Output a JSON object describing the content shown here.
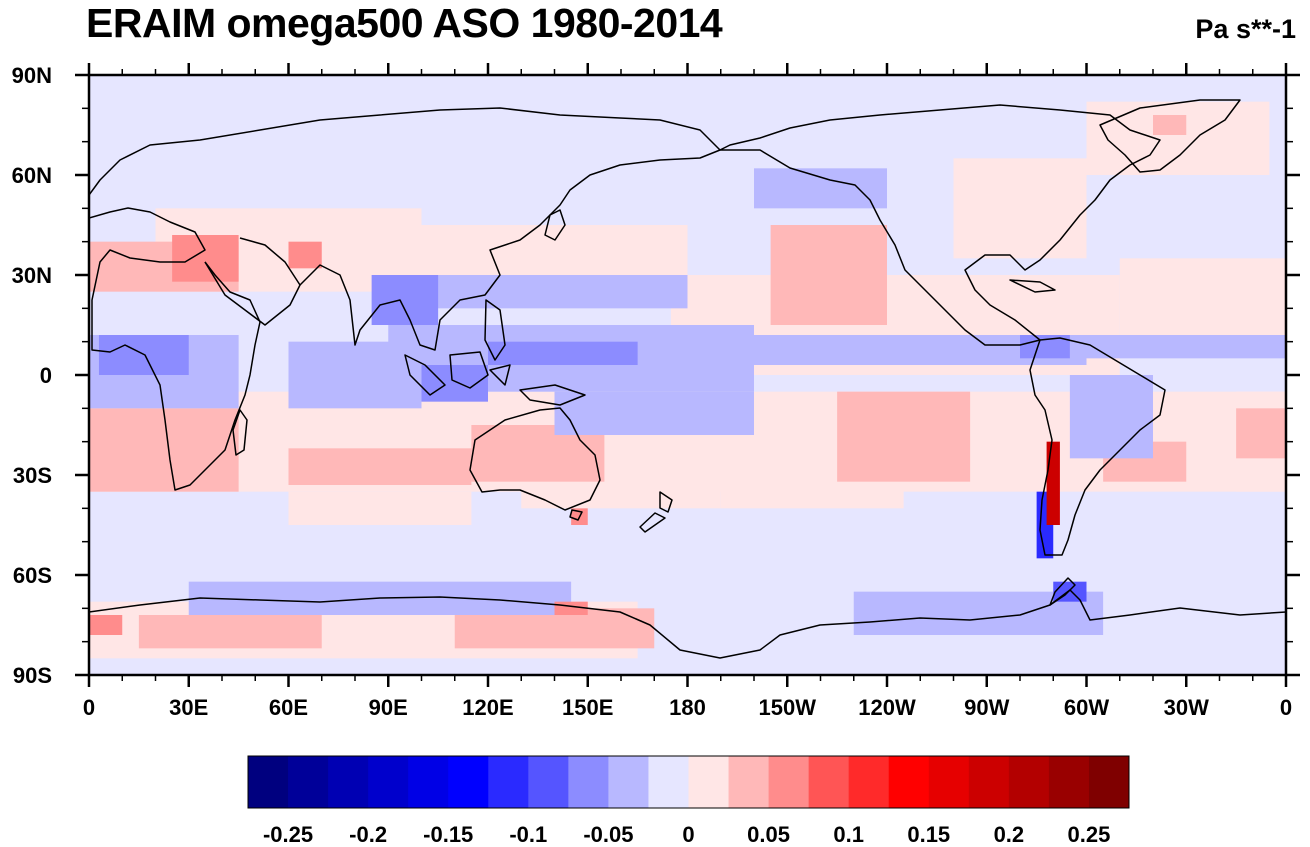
{
  "title": "ERAIM omega500 ASO 1980-2014",
  "units": "Pa s**-1",
  "colors": {
    "neg": [
      "#00007f",
      "#000099",
      "#0000b3",
      "#0000cc",
      "#0000e6",
      "#0000ff",
      "#2a2aff",
      "#5555ff",
      "#8c8cff",
      "#b8b8ff",
      "#e6e6ff"
    ],
    "pos": [
      "#ffe6e6",
      "#ffb8b8",
      "#ff8c8c",
      "#ff5555",
      "#ff2a2a",
      "#ff0000",
      "#e60000",
      "#cc0000",
      "#b30000",
      "#990000",
      "#7f0000"
    ]
  },
  "chart_data": {
    "type": "heatmap",
    "title": "ERAIM omega500 ASO 1980-2014",
    "units": "Pa s**-1",
    "projection": "cylindrical-equidistant",
    "lon_range": [
      0,
      360
    ],
    "lat_range": [
      -90,
      90
    ],
    "x_ticks": [
      "0",
      "30E",
      "60E",
      "90E",
      "120E",
      "150E",
      "180",
      "150W",
      "120W",
      "90W",
      "60W",
      "30W",
      "0"
    ],
    "y_ticks": [
      "90S",
      "60S",
      "30S",
      "0",
      "30N",
      "60N",
      "90N"
    ],
    "colorbar_levels": [
      -0.275,
      -0.25,
      -0.225,
      -0.2,
      -0.175,
      -0.15,
      -0.125,
      -0.1,
      -0.075,
      -0.05,
      -0.025,
      0,
      0.025,
      0.05,
      0.075,
      0.1,
      0.125,
      0.15,
      0.175,
      0.2,
      0.225,
      0.25,
      0.275
    ],
    "colorbar_labels": [
      "-0.25",
      "-0.2",
      "-0.15",
      "-0.1",
      "-0.05",
      "0",
      "0.05",
      "0.1",
      "0.15",
      "0.2",
      "0.25"
    ],
    "colorbar_label_values": [
      -0.25,
      -0.2,
      -0.15,
      -0.1,
      -0.05,
      0,
      0.05,
      0.1,
      0.15,
      0.2,
      0.25
    ],
    "regions": [
      {
        "lon": [
          0,
          360
        ],
        "lat": [
          -90,
          90
        ],
        "value": -0.01
      },
      {
        "lon": [
          5,
          360
        ],
        "lat": [
          -35,
          -5
        ],
        "value": 0.012
      },
      {
        "lon": [
          175,
          310
        ],
        "lat": [
          0,
          30
        ],
        "value": 0.012
      },
      {
        "lon": [
          310,
          360
        ],
        "lat": [
          10,
          35
        ],
        "value": 0.012
      },
      {
        "lon": [
          260,
          300
        ],
        "lat": [
          35,
          65
        ],
        "value": 0.012
      },
      {
        "lon": [
          20,
          100
        ],
        "lat": [
          25,
          50
        ],
        "value": 0.012
      },
      {
        "lon": [
          100,
          180
        ],
        "lat": [
          30,
          45
        ],
        "value": 0.012
      },
      {
        "lon": [
          0,
          165
        ],
        "lat": [
          -85,
          -68
        ],
        "value": 0.012
      },
      {
        "lon": [
          300,
          355
        ],
        "lat": [
          60,
          82
        ],
        "value": 0.012
      },
      {
        "lon": [
          345,
          360
        ],
        "lat": [
          -5,
          -35
        ],
        "value": 0.012
      },
      {
        "lon": [
          0,
          10
        ],
        "lat": [
          -5,
          -35
        ],
        "value": 0.012
      },
      {
        "lon": [
          60,
          115
        ],
        "lat": [
          -45,
          -35
        ],
        "value": 0.012
      },
      {
        "lon": [
          130,
          190
        ],
        "lat": [
          -40,
          -25
        ],
        "value": 0.012
      },
      {
        "lon": [
          190,
          245
        ],
        "lat": [
          -40,
          -25
        ],
        "value": 0.012
      },
      {
        "lon": [
          225,
          265
        ],
        "lat": [
          -32,
          -5
        ],
        "value": 0.03
      },
      {
        "lon": [
          205,
          240
        ],
        "lat": [
          15,
          45
        ],
        "value": 0.03
      },
      {
        "lon": [
          60,
          115
        ],
        "lat": [
          -33,
          -22
        ],
        "value": 0.03
      },
      {
        "lon": [
          0,
          45
        ],
        "lat": [
          -35,
          -10
        ],
        "value": 0.03
      },
      {
        "lon": [
          115,
          155
        ],
        "lat": [
          -32,
          -15
        ],
        "value": 0.03
      },
      {
        "lon": [
          345,
          360
        ],
        "lat": [
          -25,
          -10
        ],
        "value": 0.03
      },
      {
        "lon": [
          15,
          70
        ],
        "lat": [
          -82,
          -72
        ],
        "value": 0.03
      },
      {
        "lon": [
          110,
          170
        ],
        "lat": [
          -82,
          -70
        ],
        "value": 0.03
      },
      {
        "lon": [
          0,
          45
        ],
        "lat": [
          25,
          40
        ],
        "value": 0.03
      },
      {
        "lon": [
          305,
          330
        ],
        "lat": [
          -32,
          -20
        ],
        "value": 0.03
      },
      {
        "lon": [
          90,
          200
        ],
        "lat": [
          -5,
          15
        ],
        "value": -0.035
      },
      {
        "lon": [
          60,
          100
        ],
        "lat": [
          -10,
          10
        ],
        "value": -0.035
      },
      {
        "lon": [
          200,
          300
        ],
        "lat": [
          3,
          12
        ],
        "value": -0.035
      },
      {
        "lon": [
          300,
          360
        ],
        "lat": [
          5,
          12
        ],
        "value": -0.035
      },
      {
        "lon": [
          0,
          45
        ],
        "lat": [
          -10,
          12
        ],
        "value": -0.035
      },
      {
        "lon": [
          140,
          200
        ],
        "lat": [
          -18,
          -5
        ],
        "value": -0.035
      },
      {
        "lon": [
          30,
          145
        ],
        "lat": [
          -72,
          -62
        ],
        "value": -0.035
      },
      {
        "lon": [
          230,
          305
        ],
        "lat": [
          -78,
          -65
        ],
        "value": -0.035
      },
      {
        "lon": [
          200,
          240
        ],
        "lat": [
          50,
          62
        ],
        "value": -0.035
      },
      {
        "lon": [
          100,
          180
        ],
        "lat": [
          20,
          30
        ],
        "value": -0.035
      },
      {
        "lon": [
          295,
          320
        ],
        "lat": [
          -25,
          0
        ],
        "value": -0.035
      },
      {
        "lon": [
          3,
          30
        ],
        "lat": [
          0,
          12
        ],
        "value": -0.06
      },
      {
        "lon": [
          120,
          165
        ],
        "lat": [
          3,
          10
        ],
        "value": -0.06
      },
      {
        "lon": [
          85,
          105
        ],
        "lat": [
          15,
          30
        ],
        "value": -0.06
      },
      {
        "lon": [
          280,
          295
        ],
        "lat": [
          5,
          12
        ],
        "value": -0.06
      },
      {
        "lon": [
          100,
          120
        ],
        "lat": [
          -8,
          3
        ],
        "value": -0.06
      },
      {
        "lon": [
          285,
          290
        ],
        "lat": [
          -55,
          -35
        ],
        "value": -0.12
      },
      {
        "lon": [
          288,
          292
        ],
        "lat": [
          -45,
          -20
        ],
        "value": 0.18
      },
      {
        "lon": [
          145,
          150
        ],
        "lat": [
          -45,
          -40
        ],
        "value": 0.06
      },
      {
        "lon": [
          290,
          300
        ],
        "lat": [
          -68,
          -62
        ],
        "value": -0.1
      },
      {
        "lon": [
          25,
          45
        ],
        "lat": [
          28,
          42
        ],
        "value": 0.05
      },
      {
        "lon": [
          60,
          70
        ],
        "lat": [
          32,
          40
        ],
        "value": 0.05
      },
      {
        "lon": [
          140,
          150
        ],
        "lat": [
          -72,
          -68
        ],
        "value": 0.05
      },
      {
        "lon": [
          0,
          10
        ],
        "lat": [
          -78,
          -72
        ],
        "value": 0.05
      },
      {
        "lon": [
          320,
          330
        ],
        "lat": [
          72,
          78
        ],
        "value": 0.04
      }
    ]
  }
}
